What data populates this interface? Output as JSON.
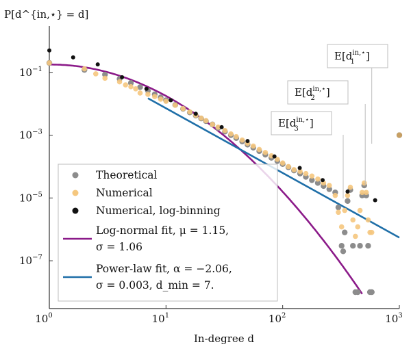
{
  "chart_data": {
    "type": "scatter",
    "title": "",
    "ylabel": "P[d^{in,⋆} = d]",
    "xlabel": "In-degree d",
    "x_scale": "log",
    "y_scale": "log",
    "xlim": [
      1,
      1000
    ],
    "ylim": [
      3e-09,
      3
    ],
    "x_ticks": [
      {
        "value": 1,
        "base": "10",
        "exp": "0"
      },
      {
        "value": 10,
        "base": "10",
        "exp": "1"
      },
      {
        "value": 100,
        "base": "10",
        "exp": "2"
      },
      {
        "value": 1000,
        "base": "10",
        "exp": "3"
      }
    ],
    "y_ticks": [
      {
        "value": 0.1,
        "base": "10",
        "exp": "−1"
      },
      {
        "value": 0.001,
        "base": "10",
        "exp": "−3"
      },
      {
        "value": 1e-05,
        "base": "10",
        "exp": "−5"
      },
      {
        "value": 1e-07,
        "base": "10",
        "exp": "−7"
      }
    ],
    "legend": {
      "position": "bottom-left",
      "entries": [
        {
          "label": "Theoretical",
          "marker": "dot",
          "color": "#8c8c8c"
        },
        {
          "label": "Numerical",
          "marker": "dot",
          "color": "#f5c77e"
        },
        {
          "label": "Numerical, log-binning",
          "marker": "dot",
          "color": "#111111"
        },
        {
          "label_line1": "Log-normal fit, μ = 1.15,",
          "label_line2": "σ = 1.06",
          "marker": "line",
          "color": "#8b1a89"
        },
        {
          "label_line1": "Power-law fit, α = −2.06,",
          "label_line2": "σ = 0.003, d_min = 7.",
          "marker": "line",
          "color": "#1f6fa8"
        }
      ]
    },
    "series": [
      {
        "name": "Theoretical",
        "color": "#8c8c8c",
        "x": [
          1,
          2,
          3,
          4,
          5,
          6,
          7,
          8,
          9,
          10,
          12,
          14,
          16,
          18,
          20,
          22,
          25,
          28,
          32,
          36,
          40,
          45,
          50,
          56,
          63,
          71,
          80,
          90,
          100,
          112,
          125,
          141,
          158,
          178,
          200,
          224,
          251,
          282,
          300,
          320,
          330,
          340,
          360,
          380,
          400,
          420,
          440,
          460,
          480,
          500,
          520,
          540,
          560,
          580,
          1000
        ],
        "y": [
          0.2,
          0.12,
          0.085,
          0.062,
          0.046,
          0.034,
          0.026,
          0.02,
          0.016,
          0.013,
          0.0092,
          0.0069,
          0.0053,
          0.0042,
          0.0034,
          0.0028,
          0.0022,
          0.0017,
          0.0013,
          0.001,
          0.00081,
          0.00063,
          0.0005,
          0.0004,
          0.00031,
          0.00024,
          0.00019,
          0.00015,
          0.00012,
          9.5e-05,
          7.5e-05,
          6e-05,
          4.7e-05,
          3.7e-05,
          3e-05,
          2.4e-05,
          1.9e-05,
          1.5e-05,
          5e-06,
          3e-07,
          2e-07,
          8e-07,
          8e-06,
          1.8e-05,
          3e-07,
          1e-08,
          1e-08,
          3e-07,
          1.2e-05,
          2.5e-05,
          1.2e-05,
          3e-07,
          1e-08,
          1e-08,
          0.001
        ]
      },
      {
        "name": "Numerical",
        "color": "#f5c77e",
        "x": [
          1,
          2,
          2.5,
          3,
          4,
          4.5,
          5,
          5.5,
          6,
          7,
          8,
          9,
          10,
          12,
          14,
          16,
          18,
          20,
          22,
          25,
          28,
          32,
          36,
          40,
          45,
          50,
          56,
          63,
          71,
          80,
          90,
          100,
          112,
          125,
          141,
          158,
          178,
          200,
          224,
          251,
          282,
          300,
          320,
          340,
          360,
          380,
          400,
          420,
          440,
          460,
          480,
          500,
          520,
          540,
          560,
          580,
          1000
        ],
        "y": [
          0.2,
          0.13,
          0.09,
          0.065,
          0.05,
          0.04,
          0.035,
          0.03,
          0.022,
          0.02,
          0.017,
          0.014,
          0.012,
          0.009,
          0.007,
          0.0055,
          0.0043,
          0.0035,
          0.0029,
          0.0022,
          0.0018,
          0.0014,
          0.0011,
          0.0009,
          0.0007,
          0.00055,
          0.00045,
          0.00035,
          0.00028,
          0.00022,
          0.00017,
          0.00013,
          0.0001,
          8e-05,
          7e-05,
          6e-05,
          5e-05,
          4e-05,
          3e-05,
          2.5e-05,
          1.2e-05,
          3.5e-06,
          1.2e-06,
          4e-06,
          1.2e-05,
          2.2e-05,
          2e-06,
          6e-07,
          1.2e-06,
          4e-06,
          1.5e-05,
          3e-05,
          1.5e-05,
          2e-06,
          8e-07,
          8e-07,
          0.001
        ]
      },
      {
        "name": "Numerical, log-binning",
        "color": "#111111",
        "x": [
          1,
          1.6,
          2.6,
          4.2,
          6.8,
          11,
          18,
          30,
          50,
          85,
          140,
          220,
          360,
          620
        ],
        "y": [
          0.5,
          0.3,
          0.18,
          0.07,
          0.03,
          0.013,
          0.0048,
          0.0018,
          0.00065,
          0.00021,
          9e-05,
          3.7e-05,
          1.6e-05,
          8.5e-06
        ]
      },
      {
        "name": "Log-normal fit, μ = 1.15, σ = 1.06",
        "color": "#8b1a89",
        "mu": 1.15,
        "sigma": 1.06,
        "x_range": [
          1,
          480
        ]
      },
      {
        "name": "Power-law fit, α = −2.06, σ = 0.003, d_min = 7.",
        "color": "#1f6fa8",
        "alpha": -2.06,
        "d_min": 7,
        "anchor": {
          "x": 7,
          "y": 0.015
        },
        "x_range": [
          7,
          1000
        ]
      }
    ],
    "annotations": [
      {
        "text_main": "E[d",
        "text_sub": "1",
        "text_sup": "in,⋆",
        "x": 580
      },
      {
        "text_main": "E[d",
        "text_sub": "2",
        "text_sup": "in,⋆",
        "x": 510
      },
      {
        "text_main": "E[d",
        "text_sub": "3",
        "text_sup": "in,⋆",
        "x": 330
      }
    ],
    "grid": false
  }
}
